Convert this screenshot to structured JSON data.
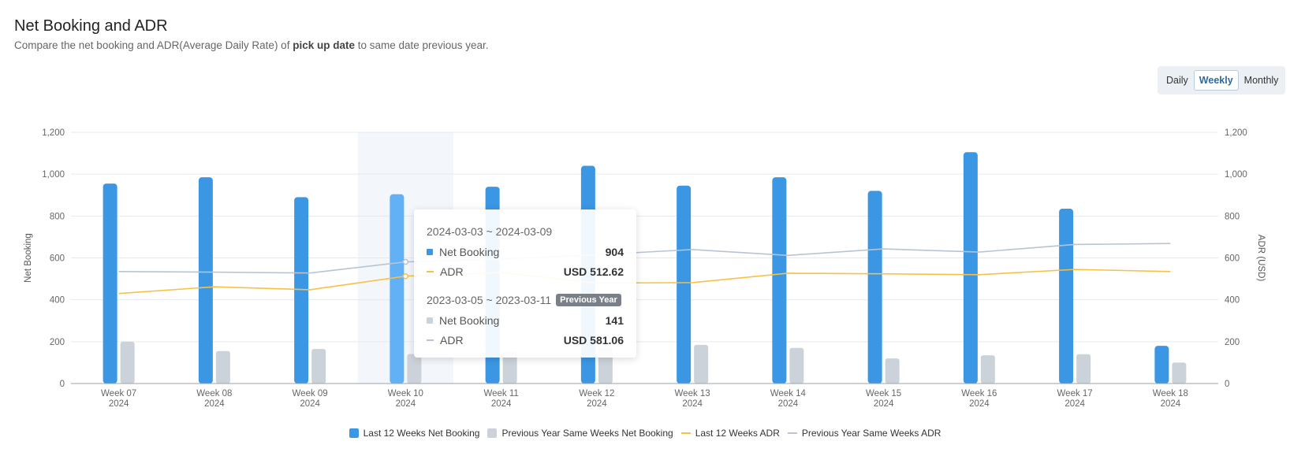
{
  "header": {
    "title": "Net Booking and ADR",
    "subtitle_pre": "Compare the net booking and ADR(Average Daily Rate) of ",
    "subtitle_bold": "pick up date",
    "subtitle_post": " to same date previous year."
  },
  "granularity": {
    "options": [
      "Daily",
      "Weekly",
      "Monthly"
    ],
    "selected": "Weekly"
  },
  "colors": {
    "current_bar": "#3b97e3",
    "current_bar_highlight": "#62b0f5",
    "previous_bar": "#ccd2d9",
    "current_adr": "#f7c148",
    "previous_adr": "#b8c4d3",
    "grid": "#e6e9ee",
    "axis_text": "#666666"
  },
  "chart_data": {
    "type": "bar",
    "categories": [
      "Week 07",
      "Week 08",
      "Week 09",
      "Week 10",
      "Week 11",
      "Week 12",
      "Week 13",
      "Week 14",
      "Week 15",
      "Week 16",
      "Week 17",
      "Week 18"
    ],
    "category_year": "2024",
    "ylabel": "Net Booking",
    "y2label": "ADR (USD)",
    "ylim": [
      0,
      1200
    ],
    "y2lim": [
      0,
      1200
    ],
    "yticks": [
      "0",
      "200",
      "400",
      "600",
      "800",
      "1,000",
      "1,200"
    ],
    "y2ticks": [
      "0",
      "200",
      "400",
      "600",
      "800",
      "1,000",
      "1,200"
    ],
    "highlight_index": 3,
    "grid": true,
    "legend_position": "bottom",
    "series": [
      {
        "name": "Last 12 Weeks Net Booking",
        "type": "bar",
        "axis": "left",
        "values": [
          955,
          985,
          890,
          904,
          940,
          1040,
          945,
          985,
          920,
          1105,
          835,
          180
        ]
      },
      {
        "name": "Previous Year Same Weeks Net Booking",
        "type": "bar",
        "axis": "left",
        "values": [
          200,
          155,
          165,
          141,
          150,
          170,
          185,
          170,
          120,
          135,
          140,
          100
        ]
      },
      {
        "name": "Last 12 Weeks ADR",
        "type": "line",
        "axis": "right",
        "values": [
          430,
          462,
          448,
          512.62,
          530,
          480,
          482,
          527,
          524,
          520,
          545,
          535
        ]
      },
      {
        "name": "Previous Year Same Weeks ADR",
        "type": "line",
        "axis": "right",
        "values": [
          535,
          532,
          528,
          581.06,
          595,
          615,
          640,
          612,
          643,
          628,
          664,
          669
        ]
      }
    ]
  },
  "tooltip": {
    "current_period": "2024-03-03 ~ 2024-03-09",
    "current_net_label": "Net Booking",
    "current_net_value": "904",
    "current_adr_label": "ADR",
    "current_adr_value": "USD 512.62",
    "previous_period": "2023-03-05 ~ 2023-03-11",
    "previous_badge": "Previous Year",
    "previous_net_label": "Net Booking",
    "previous_net_value": "141",
    "previous_adr_label": "ADR",
    "previous_adr_value": "USD 581.06"
  }
}
